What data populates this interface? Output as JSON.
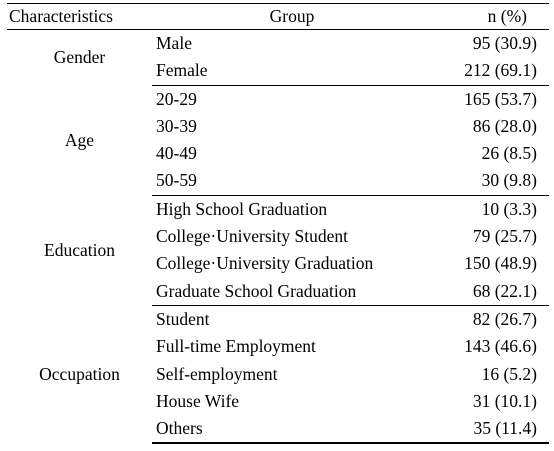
{
  "header": {
    "characteristics": "Characteristics",
    "group": "Group",
    "n_percent": "n (%)"
  },
  "sections": [
    {
      "characteristic": "Gender",
      "rows": [
        {
          "group": "Male",
          "n": "95 (30.9)"
        },
        {
          "group": "Female",
          "n": "212 (69.1)"
        }
      ]
    },
    {
      "characteristic": "Age",
      "rows": [
        {
          "group": "20-29",
          "n": "165 (53.7)"
        },
        {
          "group": "30-39",
          "n": "86 (28.0)"
        },
        {
          "group": "40-49",
          "n": "26 (8.5)"
        },
        {
          "group": "50-59",
          "n": "30 (9.8)"
        }
      ]
    },
    {
      "characteristic": "Education",
      "rows": [
        {
          "group": "High School Graduation",
          "n": "10 (3.3)"
        },
        {
          "group": "College·University Student",
          "n": "79 (25.7)"
        },
        {
          "group": "College·University Graduation",
          "n": "150 (48.9)"
        },
        {
          "group": "Graduate School Graduation",
          "n": "68 (22.1)"
        }
      ]
    },
    {
      "characteristic": "Occupation",
      "rows": [
        {
          "group": "Student",
          "n": "82 (26.7)"
        },
        {
          "group": "Full-time Employment",
          "n": "143 (46.6)"
        },
        {
          "group": "Self-employment",
          "n": "16 (5.2)"
        },
        {
          "group": "House Wife",
          "n": "31 (10.1)"
        },
        {
          "group": "Others",
          "n": "35 (11.4)"
        }
      ]
    }
  ]
}
